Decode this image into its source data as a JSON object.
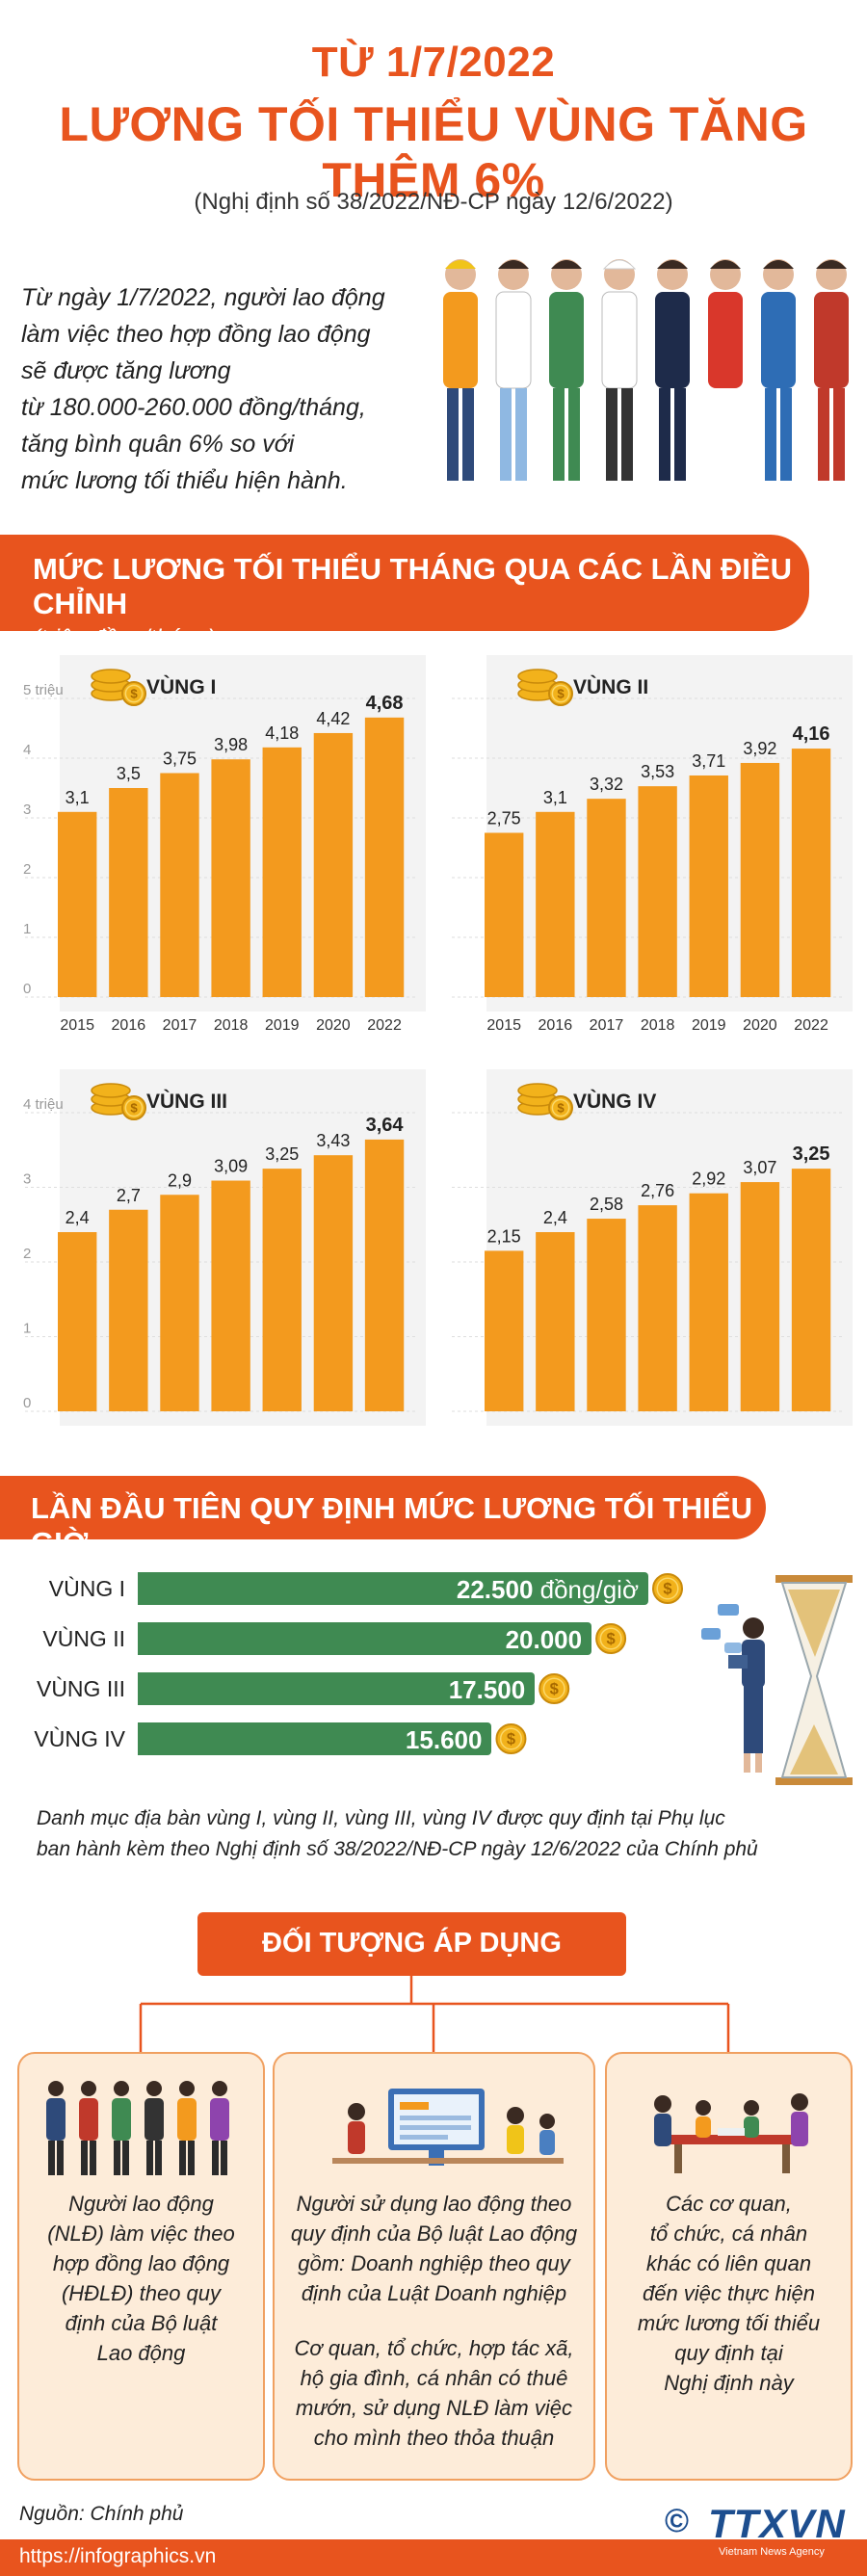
{
  "header": {
    "title_line1": "TỪ 1/7/2022",
    "title_line2": "LƯƠNG TỐI THIỂU VÙNG TĂNG THÊM 6%",
    "decree": "(Nghị định số 38/2022/NĐ-CP ngày 12/6/2022)"
  },
  "intro": {
    "lines": [
      "Từ ngày 1/7/2022, người lao động",
      "làm việc theo hợp đồng lao động",
      "sẽ được tăng lương",
      "từ 180.000-260.000 đồng/tháng,",
      "tăng bình quân 6% so với",
      "mức lương tối thiểu hiện hành."
    ]
  },
  "section1": {
    "title": "MỨC LƯƠNG TỐI THIỂU THÁNG QUA CÁC LẦN ĐIỀU CHỈNH",
    "subtitle": "(triệu đồng/tháng)"
  },
  "chart_data": [
    {
      "type": "bar",
      "title": "VÙNG I",
      "categories": [
        "2015",
        "2016",
        "2017",
        "2018",
        "2019",
        "2020",
        "2022"
      ],
      "values": [
        3.1,
        3.5,
        3.75,
        3.98,
        4.18,
        4.42,
        4.68
      ],
      "value_labels": [
        "3,1",
        "3,5",
        "3,75",
        "3,98",
        "4,18",
        "4,42",
        "4,68"
      ],
      "y_ticks": [
        "0",
        "1",
        "2",
        "3",
        "4",
        "5 triệu"
      ],
      "ylim": [
        0,
        5
      ]
    },
    {
      "type": "bar",
      "title": "VÙNG II",
      "categories": [
        "2015",
        "2016",
        "2017",
        "2018",
        "2019",
        "2020",
        "2022"
      ],
      "values": [
        2.75,
        3.1,
        3.32,
        3.53,
        3.71,
        3.92,
        4.16
      ],
      "value_labels": [
        "2,75",
        "3,1",
        "3,32",
        "3,53",
        "3,71",
        "3,92",
        "4,16"
      ],
      "ylim": [
        0,
        5
      ]
    },
    {
      "type": "bar",
      "title": "VÙNG III",
      "categories": [
        "2015",
        "2016",
        "2017",
        "2018",
        "2019",
        "2020",
        "2022"
      ],
      "values": [
        2.4,
        2.7,
        2.9,
        3.09,
        3.25,
        3.43,
        3.64
      ],
      "value_labels": [
        "2,4",
        "2,7",
        "2,9",
        "3,09",
        "3,25",
        "3,43",
        "3,64"
      ],
      "y_ticks": [
        "0",
        "1",
        "2",
        "3",
        "4 triệu"
      ],
      "ylim": [
        0,
        4
      ]
    },
    {
      "type": "bar",
      "title": "VÙNG IV",
      "categories": [
        "2015",
        "2016",
        "2017",
        "2018",
        "2019",
        "2020",
        "2022"
      ],
      "values": [
        2.15,
        2.4,
        2.58,
        2.76,
        2.92,
        3.07,
        3.25
      ],
      "value_labels": [
        "2,15",
        "2,4",
        "2,58",
        "2,76",
        "2,92",
        "3,07",
        "3,25"
      ],
      "ylim": [
        0,
        4
      ]
    }
  ],
  "section2": {
    "title": "LẦN ĐẦU TIÊN QUY ĐỊNH MỨC LƯƠNG TỐI THIỂU GIỜ",
    "unit": "đồng/giờ",
    "rows": [
      {
        "label": "VÙNG I",
        "value_text": "22.500",
        "value": 22500
      },
      {
        "label": "VÙNG II",
        "value_text": "20.000",
        "value": 20000
      },
      {
        "label": "VÙNG III",
        "value_text": "17.500",
        "value": 17500
      },
      {
        "label": "VÙNG IV",
        "value_text": "15.600",
        "value": 15600
      }
    ]
  },
  "note": {
    "line1": "Danh mục địa bàn vùng I, vùng II, vùng III, vùng IV được quy định tại Phụ lục",
    "line2": "ban hành kèm theo Nghị định số 38/2022/NĐ-CP ngày 12/6/2022 của Chính phủ"
  },
  "applies": {
    "title": "ĐỐI TƯỢNG ÁP DỤNG",
    "card1": [
      "Người lao động",
      "(NLĐ) làm việc theo",
      "hợp đồng lao động",
      "(HĐLĐ) theo quy",
      "định của Bộ luật",
      "Lao động"
    ],
    "card2a": [
      "Người sử dụng lao động theo",
      "quy định của Bộ luật Lao động",
      "gồm: Doanh nghiệp theo quy",
      "định của Luật Doanh nghiệp"
    ],
    "card2b": [
      "Cơ quan, tổ chức, hợp tác xã,",
      "hộ gia đình, cá nhân có thuê",
      "mướn, sử dụng NLĐ làm việc",
      "cho mình theo thỏa thuận"
    ],
    "card3": [
      "Các cơ quan,",
      "tổ chức, cá nhân",
      "khác có liên quan",
      "đến việc thực hiện",
      "mức lương tối thiểu",
      "quy định tại",
      "Nghị định này"
    ]
  },
  "footer": {
    "source": "Nguồn: Chính phủ",
    "url": "https://infographics.vn",
    "copyright": "©",
    "logo": "TTXVN",
    "agency": "Vietnam News Agency"
  },
  "colors": {
    "accent": "#e8541e",
    "bar": "#f39a1e",
    "hourly_bar": "#3f8a52",
    "chart_bg": "#f3f3f3"
  }
}
